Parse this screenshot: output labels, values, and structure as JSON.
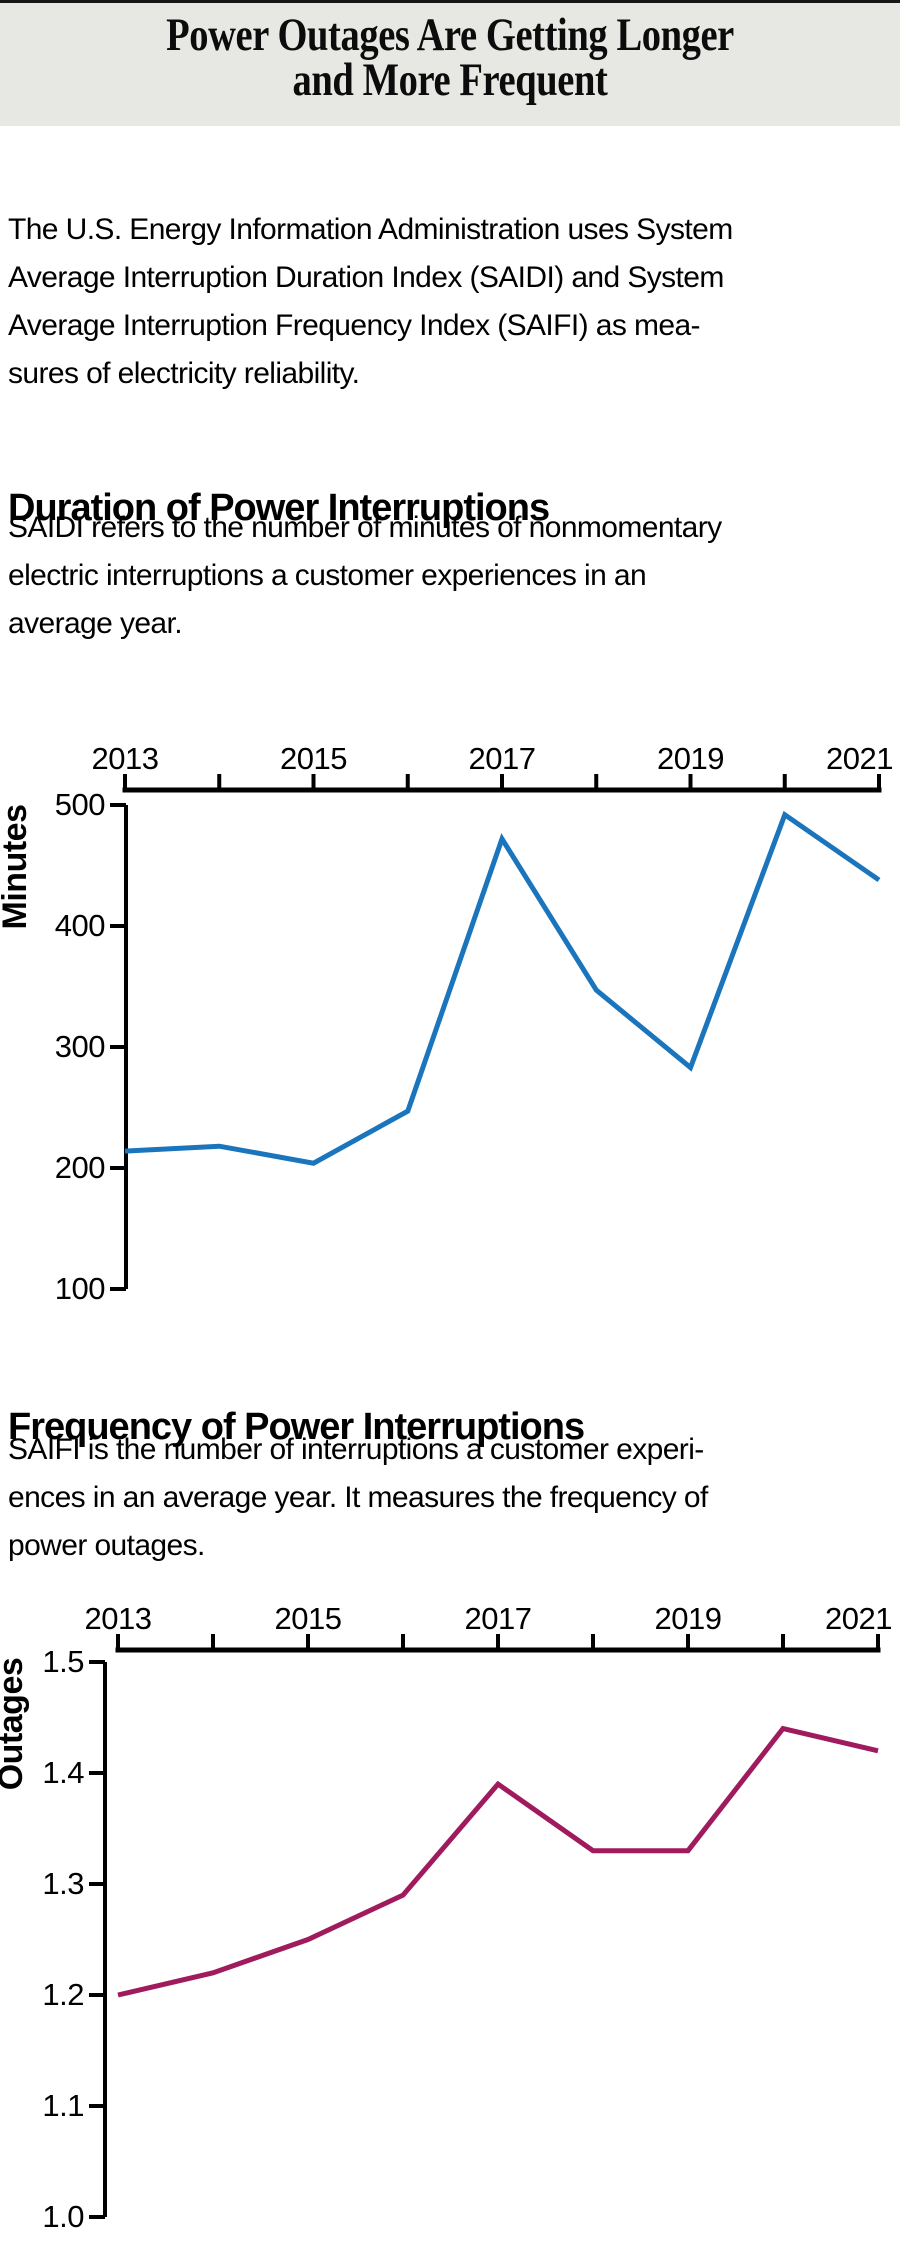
{
  "page": {
    "title_lines": [
      "Power Outages Are Getting Longer",
      "and More Frequent"
    ],
    "intro_lines": [
      "The U.S. Energy Information Administration uses System",
      "Average Interruption Duration Index (SAIDI) and System",
      "Average Interruption Frequency Index (SAIFI) as mea-",
      "sures of electricity reliability."
    ]
  },
  "sections": [
    {
      "heading": "Duration of Power Interruptions",
      "body_lines": [
        "SAIDI refers to the number of minutes of nonmomentary",
        "electric interruptions a customer experiences in an",
        "average year."
      ]
    },
    {
      "heading": "Frequency of Power Interruptions",
      "body_lines": [
        "SAIFI is the number of interruptions a customer experi-",
        "ences in an average year. It measures the frequency of",
        "power outages."
      ]
    }
  ],
  "chart_data": [
    {
      "type": "line",
      "name": "saidi",
      "title": "Duration of Power Interruptions",
      "ylabel": "Minutes",
      "x": [
        2013,
        2014,
        2015,
        2016,
        2017,
        2018,
        2019,
        2020,
        2021
      ],
      "values": [
        214,
        218,
        204,
        247,
        472,
        347,
        283,
        492,
        438
      ],
      "x_tick_labels": [
        "2013",
        "2015",
        "2017",
        "2019",
        "2021"
      ],
      "y_tick_labels": [
        "500",
        "400",
        "300",
        "200",
        "100"
      ],
      "xlim": [
        2013,
        2021
      ],
      "ylim": [
        100,
        500
      ],
      "x_axis_position": "top",
      "grid": false,
      "legend": "none",
      "line_color": "#1b75bc"
    },
    {
      "type": "line",
      "name": "saifi",
      "title": "Frequency of Power Interruptions",
      "ylabel": "Outages",
      "x": [
        2013,
        2014,
        2015,
        2016,
        2017,
        2018,
        2019,
        2020,
        2021
      ],
      "values": [
        1.2,
        1.22,
        1.25,
        1.29,
        1.39,
        1.33,
        1.33,
        1.44,
        1.42
      ],
      "x_tick_labels": [
        "2013",
        "2015",
        "2017",
        "2019",
        "2021"
      ],
      "y_tick_labels": [
        "1.5",
        "1.4",
        "1.3",
        "1.2",
        "1.1",
        "1.0"
      ],
      "xlim": [
        2013,
        2021
      ],
      "ylim": [
        1.0,
        1.5
      ],
      "x_axis_position": "top",
      "grid": false,
      "legend": "none",
      "line_color": "#a01a5e"
    }
  ],
  "colors": {
    "header_bg": "#e7e7e4",
    "top_border": "#161616",
    "axis": "#000000",
    "saidi_line": "#1b75bc",
    "saifi_line": "#a01a5e"
  }
}
